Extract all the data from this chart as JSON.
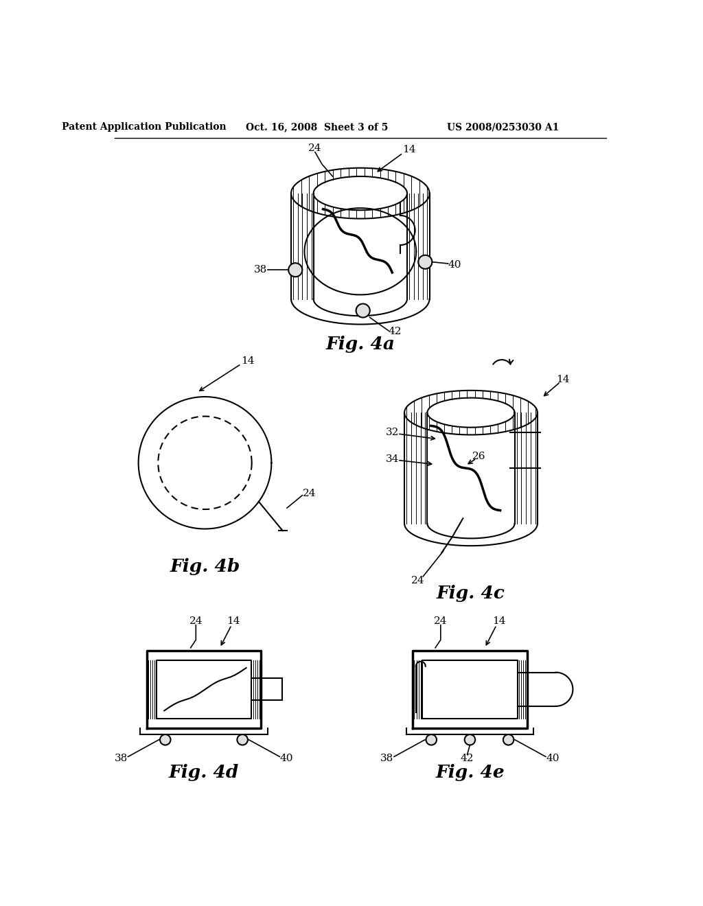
{
  "bg_color": "#ffffff",
  "line_color": "#000000",
  "header_left": "Patent Application Publication",
  "header_mid": "Oct. 16, 2008  Sheet 3 of 5",
  "header_right": "US 2008/0253030 A1",
  "fig4a_label": "Fig. 4a",
  "fig4b_label": "Fig. 4b",
  "fig4c_label": "Fig. 4c",
  "fig4d_label": "Fig. 4d",
  "fig4e_label": "Fig. 4e"
}
